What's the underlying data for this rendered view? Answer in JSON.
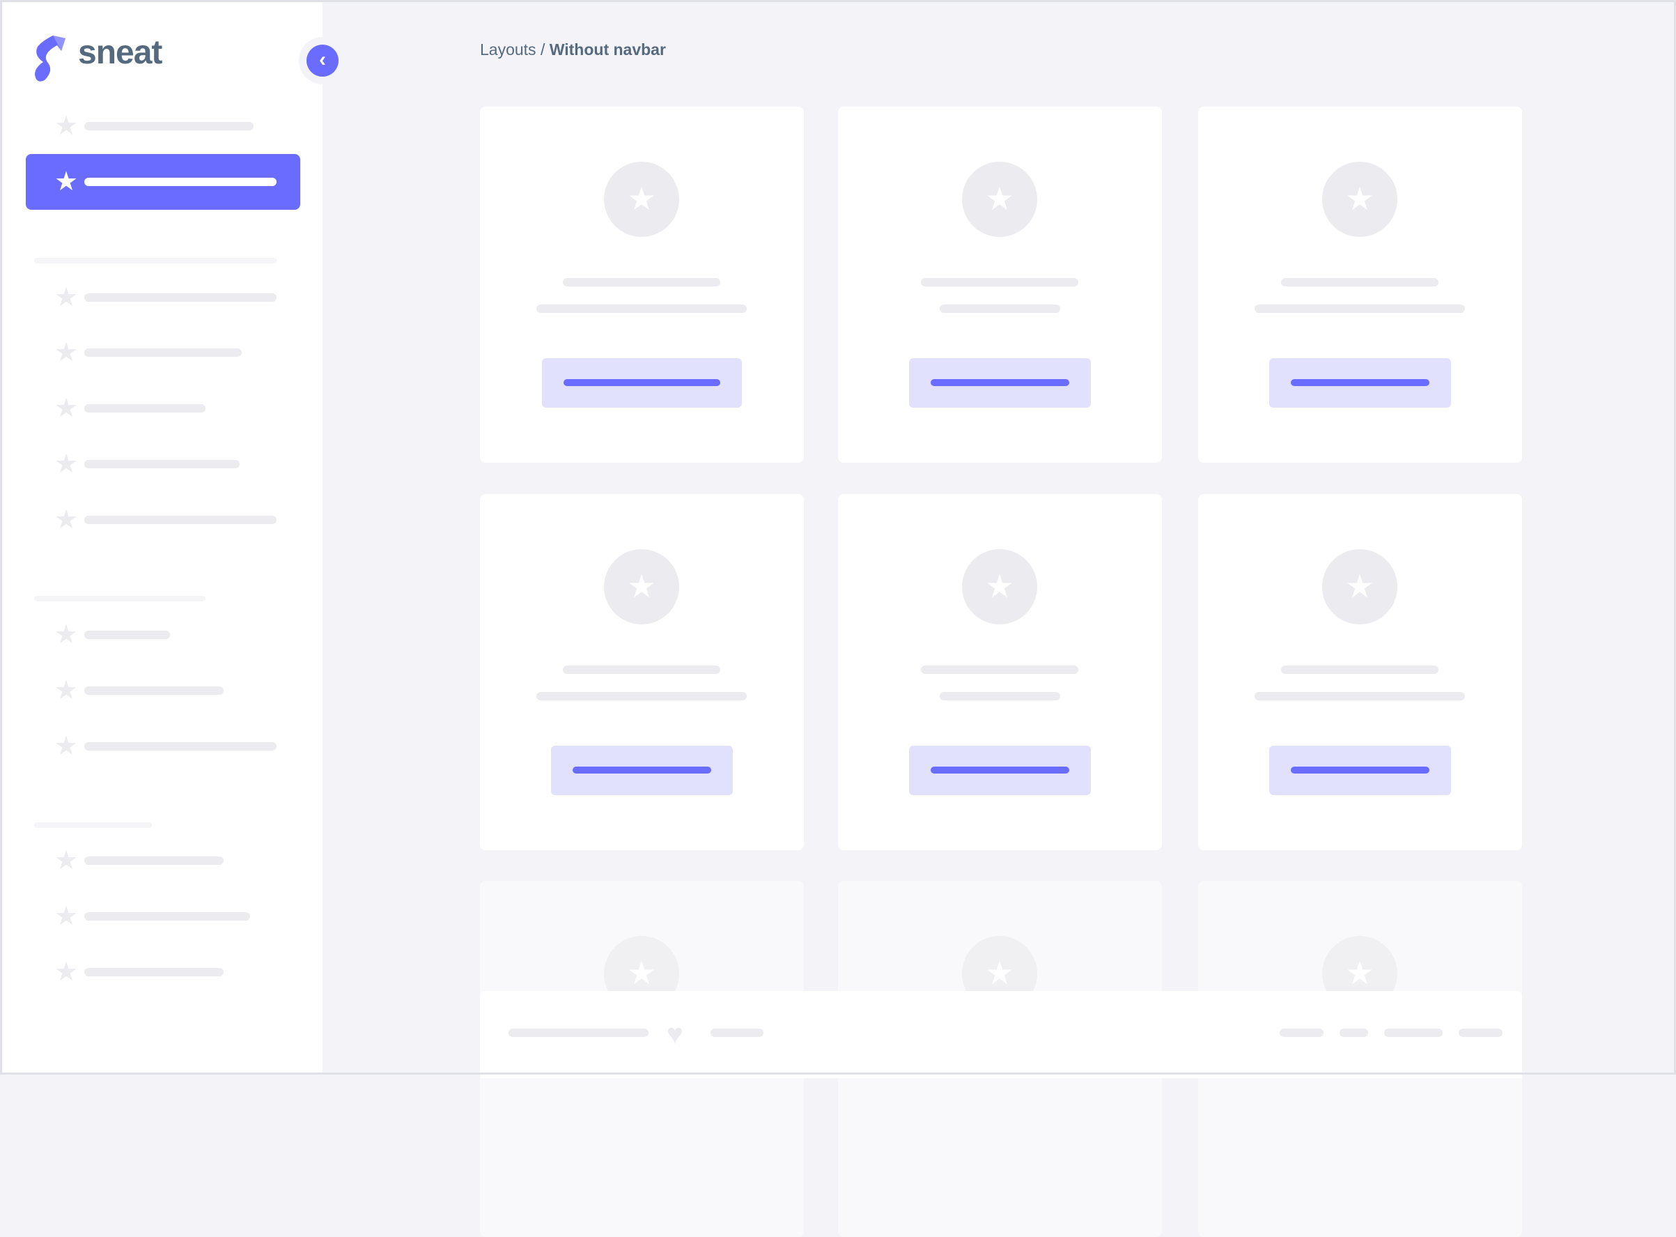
{
  "app": {
    "logo_text": "sneat",
    "colors": {
      "primary": "#696cff",
      "skeleton": "#ececf0",
      "background": "#f4f4f8",
      "button_bg": "#e1e1fd",
      "text": "#566a7f"
    }
  },
  "sidebar": {
    "toggle_icon": "chevron-left-icon",
    "item_icon": "star-icon",
    "active_index": 1,
    "item_count": 13
  },
  "breadcrumb": {
    "parent": "Layouts",
    "separator": "/",
    "current": "Without navbar"
  },
  "main": {
    "card_count": 9,
    "card_icon": "star-icon"
  },
  "footer": {
    "icon": "heart-icon"
  }
}
